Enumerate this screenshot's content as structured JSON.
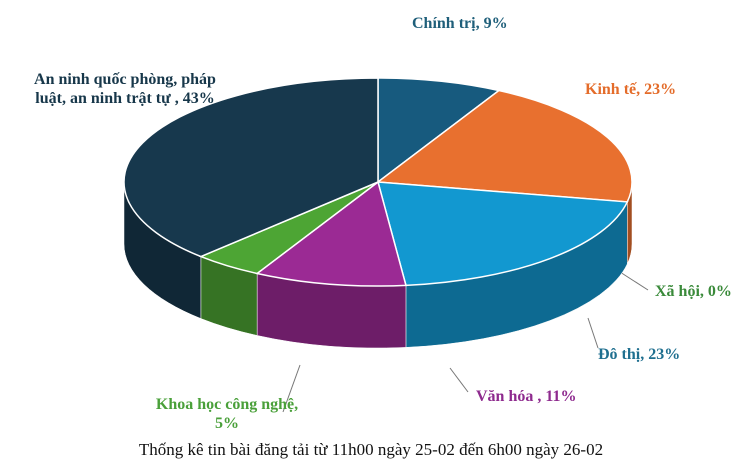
{
  "chart_data": {
    "type": "pie3d",
    "value_labels": [
      "Chính trị, 9%",
      "Kinh tế, 23%",
      "Xã hội, 0%",
      "Đô thị, 23%",
      "Văn hóa , 11%",
      "Khoa học công nghệ, 5%",
      "An ninh quốc phòng, pháp luật, an ninh trật tự , 43%"
    ],
    "values": [
      9,
      23,
      0,
      23,
      11,
      5,
      43
    ],
    "colors": [
      "#175a7e",
      "#e8702f",
      "#3b8c3b",
      "#1298d0",
      "#9b2a94",
      "#4da534",
      "#17384d"
    ],
    "label_colors": [
      "#1f5f7a",
      "#e46c2a",
      "#3a8a3a",
      "#1f6f8f",
      "#8e2a8e",
      "#4aa03a",
      "#17374a"
    ],
    "caption": "Thống kê tin bài đăng tải từ 11h00 ngày 25-02 đến 6h00 ngày 26-02"
  }
}
